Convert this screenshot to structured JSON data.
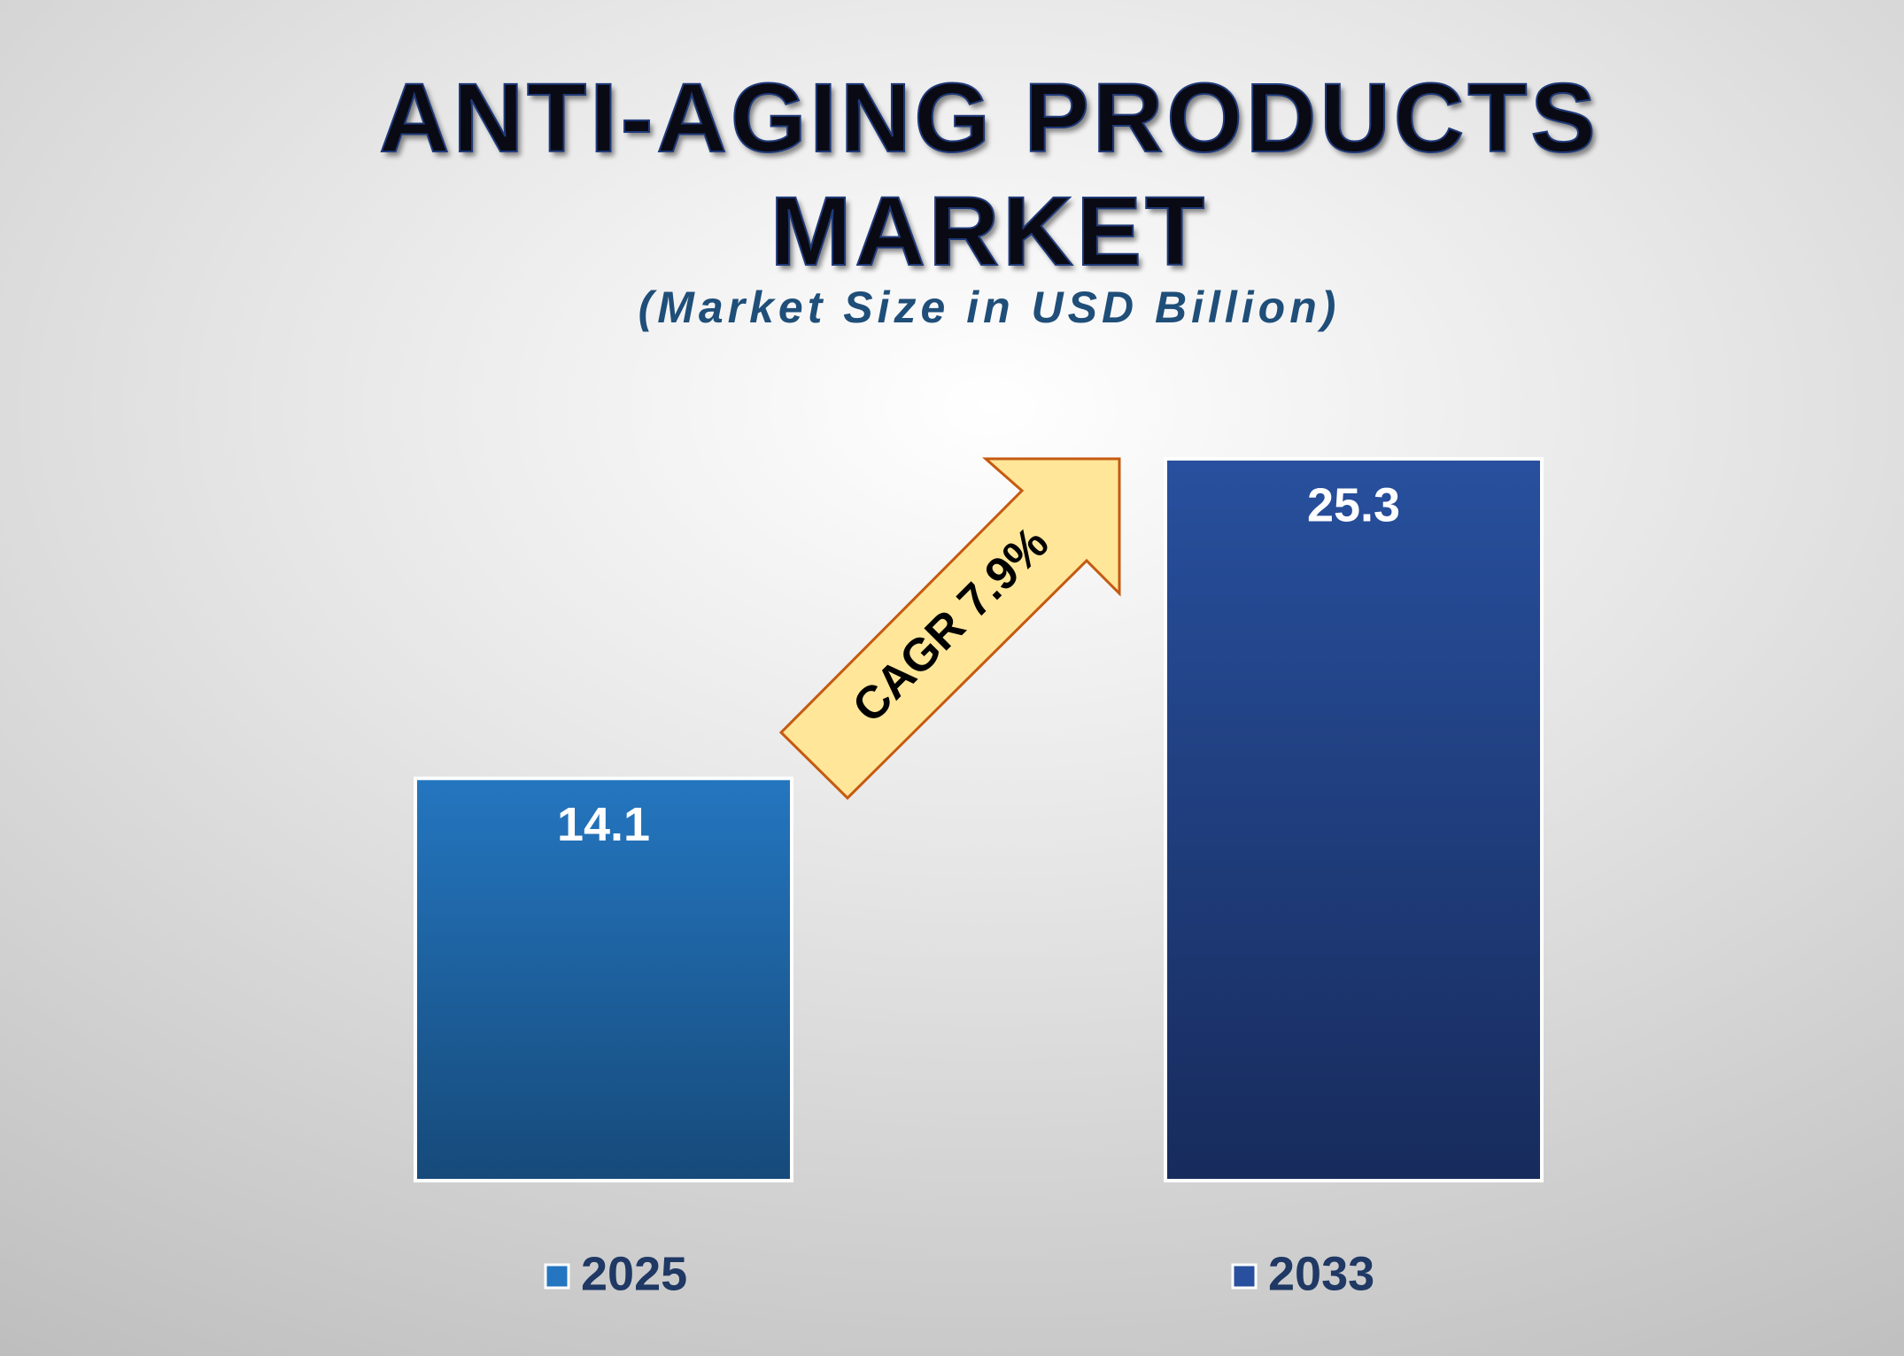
{
  "chart_data": {
    "type": "bar",
    "title": "ANTI-AGING PRODUCTS MARKET",
    "subtitle": "(Market Size in USD Billion)",
    "annotation": "CAGR 7.9%",
    "series": [
      {
        "name": "2025",
        "color": "#2476c0",
        "values": [
          14.1
        ]
      },
      {
        "name": "2033",
        "color": "#28509e",
        "values": [
          25.3
        ]
      }
    ]
  }
}
